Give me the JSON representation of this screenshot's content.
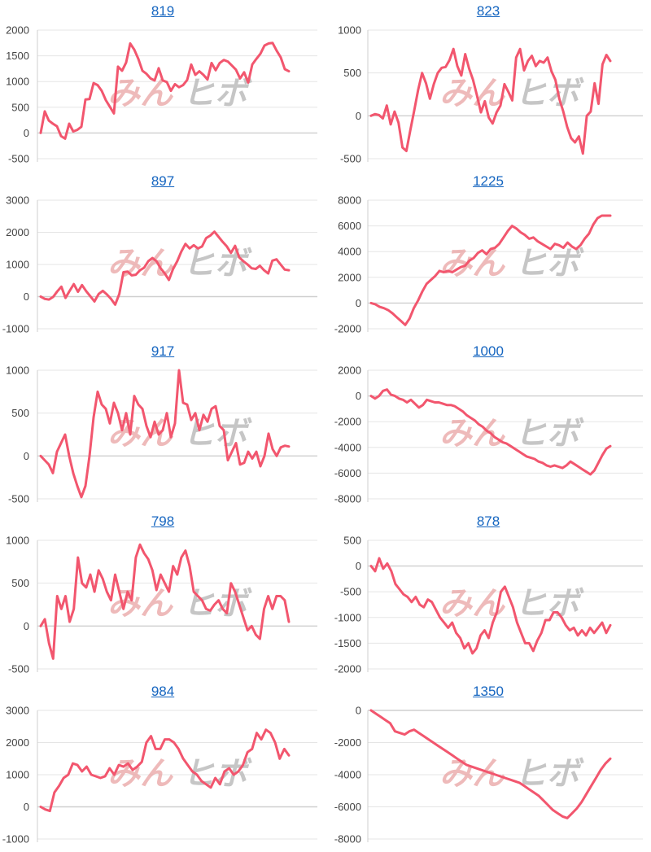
{
  "watermark": {
    "part1": "みん",
    "part2": "ヒボ"
  },
  "colors": {
    "line": "#f2566e",
    "grid": "#e5e5e5",
    "title": "#1565c0"
  },
  "chart_data": [
    {
      "type": "line",
      "title": "819",
      "ylim": [
        -500,
        2000
      ],
      "ticks": [
        "2000",
        "1500",
        "1000",
        "500",
        "0",
        "-500"
      ],
      "tick_values": [
        2000,
        1500,
        1000,
        500,
        0,
        -500
      ],
      "values": [
        0,
        420,
        240,
        180,
        130,
        -60,
        -110,
        180,
        30,
        60,
        120,
        650,
        660,
        970,
        930,
        820,
        640,
        510,
        380,
        1290,
        1210,
        1370,
        1740,
        1620,
        1440,
        1210,
        1150,
        1060,
        1020,
        1260,
        1020,
        990,
        820,
        950,
        890,
        930,
        1030,
        1330,
        1130,
        1200,
        1130,
        1040,
        1360,
        1220,
        1360,
        1420,
        1390,
        1310,
        1230,
        1060,
        1180,
        980,
        1330,
        1440,
        1540,
        1700,
        1740,
        1750,
        1600,
        1470,
        1240,
        1200
      ]
    },
    {
      "type": "line",
      "title": "823",
      "ylim": [
        -500,
        1000
      ],
      "ticks": [
        "1000",
        "500",
        "0",
        "-500"
      ],
      "tick_values": [
        1000,
        500,
        0,
        -500
      ],
      "values": [
        0,
        20,
        10,
        -30,
        120,
        -100,
        50,
        -80,
        -370,
        -410,
        -170,
        60,
        300,
        500,
        380,
        200,
        370,
        500,
        560,
        570,
        650,
        780,
        580,
        470,
        720,
        550,
        420,
        240,
        40,
        170,
        -20,
        -90,
        40,
        120,
        370,
        280,
        180,
        680,
        780,
        530,
        640,
        700,
        580,
        640,
        620,
        680,
        520,
        420,
        200,
        50,
        -130,
        -260,
        -310,
        -240,
        -440,
        0,
        50,
        380,
        140,
        600,
        710,
        640
      ]
    },
    {
      "type": "line",
      "title": "897",
      "ylim": [
        -1000,
        3000
      ],
      "ticks": [
        "3000",
        "2000",
        "1000",
        "0",
        "-1000"
      ],
      "tick_values": [
        3000,
        2000,
        1000,
        0,
        -1000
      ],
      "values": [
        0,
        -70,
        -90,
        -10,
        160,
        310,
        -40,
        180,
        390,
        150,
        360,
        170,
        10,
        -150,
        80,
        180,
        70,
        -70,
        -250,
        80,
        760,
        780,
        660,
        680,
        820,
        900,
        1100,
        1200,
        1100,
        880,
        720,
        520,
        860,
        1100,
        1400,
        1640,
        1500,
        1600,
        1500,
        1560,
        1820,
        1900,
        2020,
        1860,
        1700,
        1560,
        1360,
        1580,
        1220,
        1100,
        1000,
        880,
        860,
        960,
        820,
        720,
        1120,
        1160,
        1000,
        840,
        820
      ]
    },
    {
      "type": "line",
      "title": "1225",
      "ylim": [
        -2000,
        8000
      ],
      "ticks": [
        "8000",
        "6000",
        "4000",
        "2000",
        "0",
        "-2000"
      ],
      "tick_values": [
        8000,
        6000,
        4000,
        2000,
        0,
        -2000
      ],
      "values": [
        0,
        -100,
        -300,
        -400,
        -550,
        -800,
        -1100,
        -1400,
        -1700,
        -1200,
        -400,
        200,
        900,
        1500,
        1800,
        2100,
        2500,
        2400,
        2500,
        2400,
        2600,
        2800,
        2900,
        3300,
        3500,
        3900,
        4100,
        3800,
        4200,
        4300,
        4600,
        5100,
        5600,
        6000,
        5800,
        5500,
        5300,
        5000,
        5100,
        4800,
        4600,
        4400,
        4200,
        4600,
        4500,
        4300,
        4700,
        4400,
        4200,
        4500,
        5000,
        5400,
        6100,
        6600,
        6800,
        6800,
        6800
      ]
    },
    {
      "type": "line",
      "title": "917",
      "ylim": [
        -500,
        1000
      ],
      "ticks": [
        "1000",
        "500",
        "0",
        "-500"
      ],
      "tick_values": [
        1000,
        500,
        0,
        -500
      ],
      "values": [
        0,
        -50,
        -100,
        -200,
        50,
        150,
        250,
        0,
        -200,
        -350,
        -480,
        -350,
        0,
        450,
        750,
        600,
        550,
        380,
        620,
        500,
        300,
        500,
        250,
        700,
        600,
        550,
        350,
        220,
        400,
        250,
        300,
        500,
        220,
        380,
        1000,
        620,
        600,
        420,
        500,
        300,
        480,
        400,
        550,
        580,
        350,
        300,
        -50,
        50,
        150,
        -100,
        -80,
        50,
        -30,
        50,
        -120,
        0,
        260,
        80,
        0,
        100,
        120,
        110
      ]
    },
    {
      "type": "line",
      "title": "1000",
      "ylim": [
        -8000,
        2000
      ],
      "ticks": [
        "2000",
        "0",
        "-2000",
        "-4000",
        "-6000",
        "-8000"
      ],
      "tick_values": [
        2000,
        0,
        -2000,
        -4000,
        -6000,
        -8000
      ],
      "values": [
        0,
        -200,
        0,
        400,
        500,
        100,
        0,
        -200,
        -300,
        -500,
        -300,
        -600,
        -900,
        -700,
        -300,
        -400,
        -500,
        -500,
        -600,
        -700,
        -700,
        -800,
        -1000,
        -1200,
        -1500,
        -1700,
        -1900,
        -2200,
        -2400,
        -2700,
        -2900,
        -3200,
        -3400,
        -3600,
        -3700,
        -3900,
        -4100,
        -4300,
        -4500,
        -4700,
        -4800,
        -4900,
        -5100,
        -5200,
        -5400,
        -5500,
        -5400,
        -5500,
        -5600,
        -5400,
        -5100,
        -5300,
        -5500,
        -5700,
        -5900,
        -6100,
        -5800,
        -5200,
        -4600,
        -4100,
        -3900
      ]
    },
    {
      "type": "line",
      "title": "798",
      "ylim": [
        -500,
        1000
      ],
      "ticks": [
        "1000",
        "500",
        "0",
        "-500"
      ],
      "tick_values": [
        1000,
        500,
        0,
        -500
      ],
      "values": [
        0,
        80,
        -200,
        -380,
        350,
        200,
        350,
        50,
        200,
        800,
        500,
        450,
        600,
        400,
        650,
        550,
        400,
        300,
        600,
        400,
        200,
        400,
        300,
        800,
        950,
        850,
        780,
        650,
        420,
        600,
        500,
        400,
        700,
        600,
        800,
        880,
        700,
        400,
        350,
        300,
        200,
        180,
        250,
        300,
        200,
        150,
        500,
        400,
        250,
        100,
        -50,
        0,
        -100,
        -150,
        200,
        350,
        200,
        350,
        350,
        300,
        50
      ]
    },
    {
      "type": "line",
      "title": "878",
      "ylim": [
        -2000,
        500
      ],
      "ticks": [
        "500",
        "0",
        "-500",
        "-1000",
        "-1500",
        "-2000"
      ],
      "tick_values": [
        500,
        0,
        -500,
        -1000,
        -1500,
        -2000
      ],
      "values": [
        0,
        -100,
        150,
        -50,
        50,
        -100,
        -350,
        -450,
        -550,
        -600,
        -700,
        -600,
        -750,
        -800,
        -650,
        -700,
        -850,
        -1000,
        -1100,
        -1200,
        -1100,
        -1300,
        -1400,
        -1600,
        -1500,
        -1700,
        -1600,
        -1350,
        -1250,
        -1400,
        -1100,
        -900,
        -500,
        -400,
        -600,
        -800,
        -1100,
        -1300,
        -1500,
        -1500,
        -1650,
        -1450,
        -1300,
        -1050,
        -1050,
        -900,
        -900,
        -1000,
        -1150,
        -1250,
        -1200,
        -1350,
        -1250,
        -1350,
        -1200,
        -1300,
        -1200,
        -1100,
        -1300,
        -1150
      ]
    },
    {
      "type": "line",
      "title": "984",
      "ylim": [
        -1000,
        3000
      ],
      "ticks": [
        "3000",
        "2000",
        "1000",
        "0",
        "-1000"
      ],
      "tick_values": [
        3000,
        2000,
        1000,
        0,
        -1000
      ],
      "values": [
        0,
        -80,
        -130,
        450,
        650,
        900,
        1000,
        1350,
        1300,
        1100,
        1250,
        1000,
        950,
        900,
        950,
        1200,
        1000,
        1300,
        1250,
        1350,
        1150,
        1250,
        1400,
        2000,
        2200,
        1800,
        1800,
        2100,
        2100,
        2000,
        1800,
        1500,
        1300,
        1100,
        1000,
        800,
        700,
        600,
        900,
        700,
        1100,
        1200,
        1000,
        1100,
        1300,
        1700,
        1800,
        2300,
        2100,
        2400,
        2300,
        2000,
        1500,
        1800,
        1600
      ]
    },
    {
      "type": "line",
      "title": "1350",
      "ylim": [
        -8000,
        0
      ],
      "ticks": [
        "0",
        "-2000",
        "-4000",
        "-6000",
        "-8000"
      ],
      "tick_values": [
        0,
        -2000,
        -4000,
        -6000,
        -8000
      ],
      "values": [
        0,
        -200,
        -400,
        -600,
        -800,
        -1300,
        -1400,
        -1500,
        -1300,
        -1200,
        -1400,
        -1600,
        -1800,
        -2000,
        -2200,
        -2400,
        -2600,
        -2800,
        -3000,
        -3200,
        -3400,
        -3500,
        -3600,
        -3700,
        -3800,
        -3900,
        -4000,
        -4100,
        -4200,
        -4300,
        -4400,
        -4500,
        -4700,
        -4900,
        -5100,
        -5300,
        -5600,
        -5900,
        -6200,
        -6400,
        -6600,
        -6700,
        -6400,
        -6100,
        -5700,
        -5200,
        -4700,
        -4200,
        -3700,
        -3300,
        -3000
      ]
    }
  ]
}
